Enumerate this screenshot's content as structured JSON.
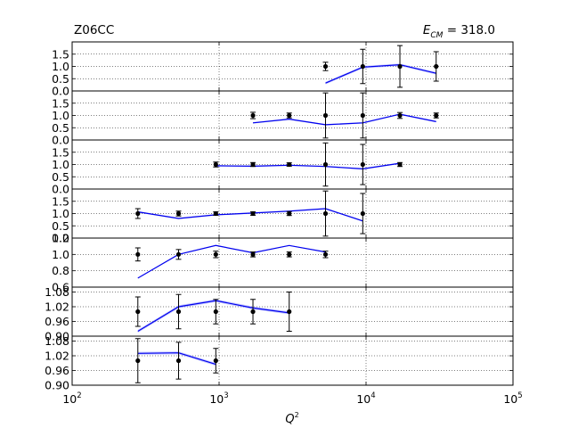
{
  "top_left_label": "Z06CC",
  "energy_label": {
    "symbol": "E",
    "subscript": "CM",
    "value_text": " = 318.0"
  },
  "chart_data": {
    "type": "scatter",
    "x_scale": "log",
    "xlim": [
      100,
      100000
    ],
    "xlabel": "Q",
    "xlabel_superscript": "2",
    "x_ticks": [
      100,
      1000,
      10000,
      100000
    ],
    "x_tick_labels": [
      {
        "base": "10",
        "exp": "2"
      },
      {
        "base": "10",
        "exp": "3"
      },
      {
        "base": "10",
        "exp": "4"
      },
      {
        "base": "10",
        "exp": "5"
      }
    ],
    "grid": true,
    "colors": {
      "data": "#000000",
      "theory": "#0000ee",
      "band": "#9aa0ff"
    },
    "panels": [
      {
        "ylim": [
          0.0,
          2.0
        ],
        "y_ticks": [
          0.0,
          0.5,
          1.0,
          1.5
        ],
        "y_tick_labels": [
          "0.0",
          "0.5",
          "1.0",
          "1.5"
        ],
        "data": [
          {
            "x": 5300,
            "y": 1.0,
            "err": 0.17
          },
          {
            "x": 9500,
            "y": 1.0,
            "err": 0.7
          },
          {
            "x": 17000,
            "y": 1.0,
            "err": 0.85
          },
          {
            "x": 30000,
            "y": 1.0,
            "err": 0.6
          }
        ],
        "theory": [
          {
            "x": 5300,
            "y": 0.32
          },
          {
            "x": 9500,
            "y": 0.97
          },
          {
            "x": 17000,
            "y": 1.07
          },
          {
            "x": 30000,
            "y": 0.72
          }
        ],
        "band_width": 0.05
      },
      {
        "ylim": [
          0.0,
          2.0
        ],
        "y_ticks": [
          0.0,
          0.5,
          1.0,
          1.5
        ],
        "y_tick_labels": [
          "0.0",
          "0.5",
          "1.0",
          "1.5"
        ],
        "data": [
          {
            "x": 1700,
            "y": 1.0,
            "err": 0.13
          },
          {
            "x": 3000,
            "y": 1.0,
            "err": 0.1
          },
          {
            "x": 5300,
            "y": 1.0,
            "err": 0.92
          },
          {
            "x": 9500,
            "y": 1.0,
            "err": 0.92
          },
          {
            "x": 17000,
            "y": 1.0,
            "err": 0.12
          },
          {
            "x": 30000,
            "y": 1.0,
            "err": 0.1
          }
        ],
        "theory": [
          {
            "x": 1700,
            "y": 0.7
          },
          {
            "x": 3000,
            "y": 0.85
          },
          {
            "x": 5300,
            "y": 0.62
          },
          {
            "x": 9500,
            "y": 0.7
          },
          {
            "x": 17000,
            "y": 1.05
          },
          {
            "x": 30000,
            "y": 0.75
          }
        ],
        "band_width": 0.03
      },
      {
        "ylim": [
          0.0,
          2.0
        ],
        "y_ticks": [
          0.0,
          0.5,
          1.0,
          1.5
        ],
        "y_tick_labels": [
          "0.0",
          "0.5",
          "1.0",
          "1.5"
        ],
        "data": [
          {
            "x": 950,
            "y": 1.0,
            "err": 0.1
          },
          {
            "x": 1700,
            "y": 1.0,
            "err": 0.08
          },
          {
            "x": 3000,
            "y": 1.0,
            "err": 0.07
          },
          {
            "x": 5300,
            "y": 1.0,
            "err": 0.88
          },
          {
            "x": 9500,
            "y": 1.0,
            "err": 0.82
          },
          {
            "x": 17000,
            "y": 1.0,
            "err": 0.08
          }
        ],
        "theory": [
          {
            "x": 950,
            "y": 0.95
          },
          {
            "x": 1700,
            "y": 0.93
          },
          {
            "x": 3000,
            "y": 0.97
          },
          {
            "x": 5300,
            "y": 0.92
          },
          {
            "x": 9500,
            "y": 0.82
          },
          {
            "x": 17000,
            "y": 1.05
          }
        ],
        "band_width": 0.03
      },
      {
        "ylim": [
          0.0,
          2.0
        ],
        "y_ticks": [
          0.0,
          0.5,
          1.0,
          1.5
        ],
        "y_tick_labels": [
          "0.0",
          "0.5",
          "1.0",
          "1.5"
        ],
        "data": [
          {
            "x": 280,
            "y": 1.0,
            "err": 0.2
          },
          {
            "x": 530,
            "y": 1.0,
            "err": 0.1
          },
          {
            "x": 950,
            "y": 1.0,
            "err": 0.07
          },
          {
            "x": 1700,
            "y": 1.0,
            "err": 0.07
          },
          {
            "x": 3000,
            "y": 1.0,
            "err": 0.08
          },
          {
            "x": 5300,
            "y": 1.0,
            "err": 0.92
          },
          {
            "x": 9500,
            "y": 1.0,
            "err": 0.82
          }
        ],
        "theory": [
          {
            "x": 280,
            "y": 1.07
          },
          {
            "x": 530,
            "y": 0.8
          },
          {
            "x": 950,
            "y": 0.95
          },
          {
            "x": 1700,
            "y": 1.02
          },
          {
            "x": 3000,
            "y": 1.1
          },
          {
            "x": 5300,
            "y": 1.2
          },
          {
            "x": 9500,
            "y": 0.7
          }
        ],
        "band_width": 0.03
      },
      {
        "ylim": [
          0.6,
          1.2
        ],
        "y_ticks": [
          0.6,
          0.8,
          1.0,
          1.2
        ],
        "y_tick_labels": [
          "0.6",
          "0.8",
          "1.0",
          "1.2"
        ],
        "data": [
          {
            "x": 280,
            "y": 1.0,
            "err": 0.08
          },
          {
            "x": 530,
            "y": 1.0,
            "err": 0.06
          },
          {
            "x": 950,
            "y": 1.0,
            "err": 0.04
          },
          {
            "x": 1700,
            "y": 1.0,
            "err": 0.03
          },
          {
            "x": 3000,
            "y": 1.0,
            "err": 0.03
          },
          {
            "x": 5300,
            "y": 1.0,
            "err": 0.04
          }
        ],
        "theory": [
          {
            "x": 280,
            "y": 0.71
          },
          {
            "x": 530,
            "y": 1.0
          },
          {
            "x": 950,
            "y": 1.11
          },
          {
            "x": 1700,
            "y": 1.02
          },
          {
            "x": 3000,
            "y": 1.11
          },
          {
            "x": 5300,
            "y": 1.03
          }
        ],
        "band_width": 0.005
      },
      {
        "ylim": [
          0.9,
          1.1
        ],
        "y_ticks": [
          0.9,
          0.96,
          1.02,
          1.08
        ],
        "y_tick_labels": [
          "0.90",
          "0.96",
          "1.02",
          "1.08"
        ],
        "data": [
          {
            "x": 280,
            "y": 1.0,
            "err": 0.06
          },
          {
            "x": 530,
            "y": 1.0,
            "err": 0.07
          },
          {
            "x": 950,
            "y": 1.0,
            "err": 0.05
          },
          {
            "x": 1700,
            "y": 1.0,
            "err": 0.05
          },
          {
            "x": 3000,
            "y": 1.0,
            "err": 0.08
          }
        ],
        "theory": [
          {
            "x": 280,
            "y": 0.92
          },
          {
            "x": 530,
            "y": 1.02
          },
          {
            "x": 950,
            "y": 1.045
          },
          {
            "x": 1700,
            "y": 1.015
          },
          {
            "x": 3000,
            "y": 0.995
          }
        ],
        "band_width": 0.006
      },
      {
        "ylim": [
          0.9,
          1.1
        ],
        "y_ticks": [
          0.9,
          0.96,
          1.02,
          1.08
        ],
        "y_tick_labels": [
          "0.90",
          "0.96",
          "1.02",
          "1.08"
        ],
        "data": [
          {
            "x": 280,
            "y": 1.0,
            "err": 0.09
          },
          {
            "x": 530,
            "y": 1.0,
            "err": 0.075
          },
          {
            "x": 950,
            "y": 1.0,
            "err": 0.05
          }
        ],
        "theory": [
          {
            "x": 280,
            "y": 1.03
          },
          {
            "x": 530,
            "y": 1.032
          },
          {
            "x": 950,
            "y": 0.985
          }
        ],
        "band_width": 0.006
      }
    ]
  }
}
